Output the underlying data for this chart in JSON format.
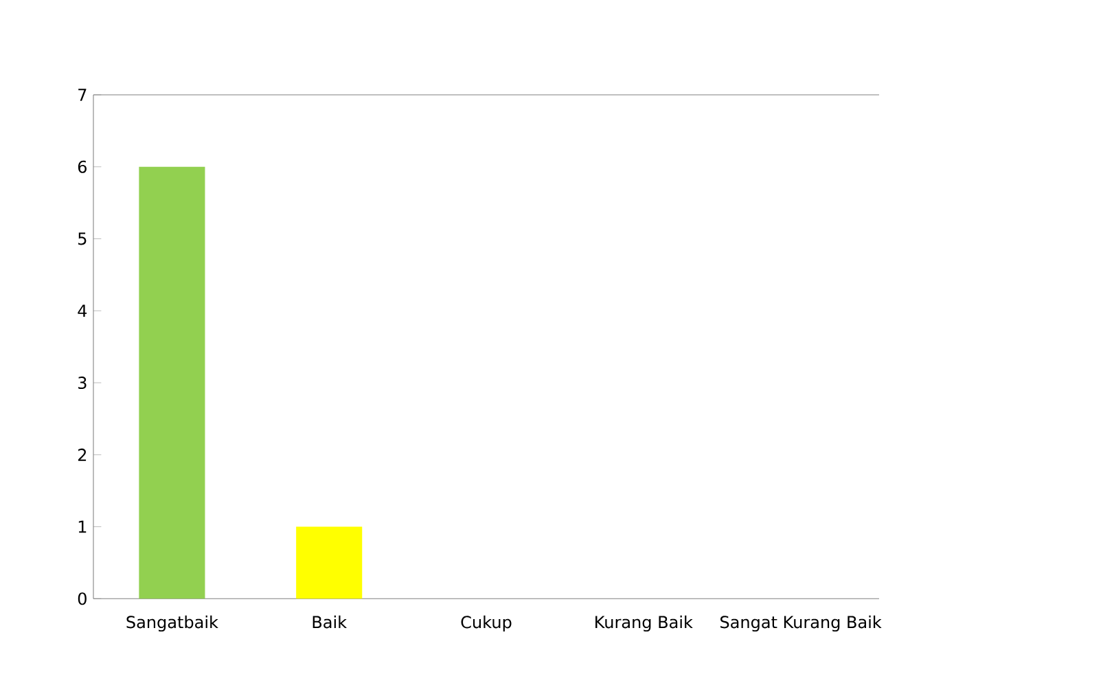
{
  "chart_data": {
    "type": "bar",
    "categories": [
      "Sangatbaik",
      "Baik",
      "Cukup",
      "Kurang Baik",
      "Sangat Kurang Baik"
    ],
    "values": [
      6,
      1,
      0,
      0,
      0
    ],
    "colors": [
      "#92d050",
      "#ffff00",
      "#4f81bd",
      "#4f81bd",
      "#4f81bd"
    ],
    "ylim": [
      0,
      7
    ],
    "yticks": [
      0,
      1,
      2,
      3,
      4,
      5,
      6,
      7
    ]
  }
}
